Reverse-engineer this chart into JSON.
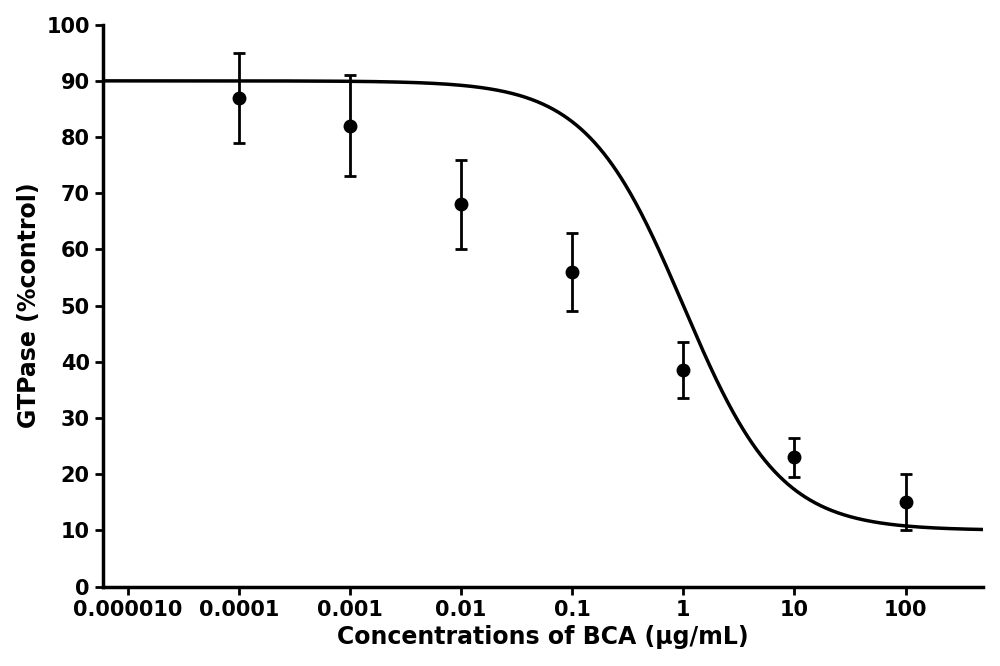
{
  "x_values": [
    0.0001,
    0.001,
    0.01,
    0.1,
    1,
    10,
    100
  ],
  "y_values": [
    87.0,
    82.0,
    68.0,
    56.0,
    38.5,
    23.0,
    15.0
  ],
  "y_errors": [
    8.0,
    9.0,
    8.0,
    7.0,
    5.0,
    3.5,
    5.0
  ],
  "xlabel": "Concentrations of BCA (μg/mL)",
  "ylabel": "GTPase (%control)",
  "ylim": [
    0,
    100
  ],
  "yticks": [
    0,
    10,
    20,
    30,
    40,
    50,
    60,
    70,
    80,
    90,
    100
  ],
  "x_tick_positions": [
    1e-05,
    0.0001,
    0.001,
    0.01,
    0.1,
    1,
    10,
    100
  ],
  "x_tick_labels": [
    "0.000010",
    "0.0001",
    "0.001",
    "0.01",
    "0.1",
    "1",
    "10",
    "100"
  ],
  "xlim": [
    6e-06,
    500
  ],
  "line_color": "#000000",
  "marker_color": "#000000",
  "background_color": "#ffffff",
  "xlabel_fontsize": 17,
  "ylabel_fontsize": 17,
  "tick_fontsize": 15,
  "line_width": 2.5,
  "marker_size": 9,
  "cap_size": 4
}
